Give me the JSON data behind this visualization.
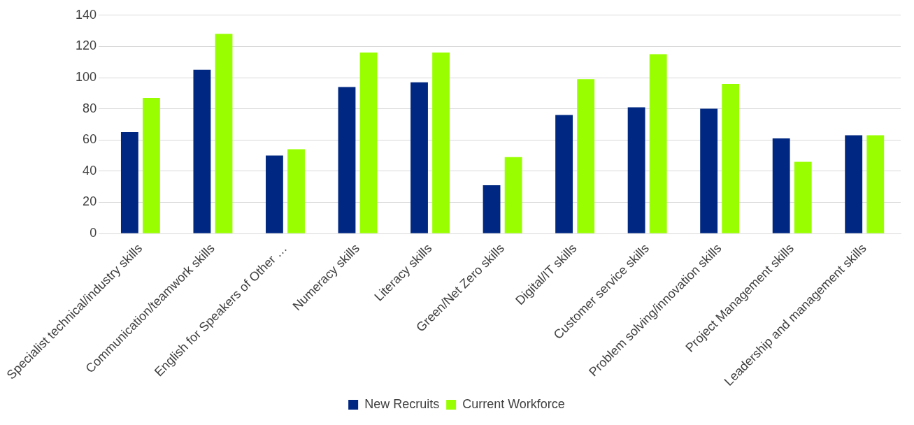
{
  "chart_data": {
    "type": "bar",
    "categories": [
      "Specialist technical/industry skills",
      "Communication/teamwork skills",
      "English for Speakers of Other …",
      "Numeracy skills",
      "Literacy skills",
      "Green/Net Zero skills",
      "Digital/IT skills",
      "Customer service skills",
      "Problem solving/innovation skills",
      "Project Management skills",
      "Leadership and management skills"
    ],
    "series": [
      {
        "name": "New Recruits",
        "color": "#002882",
        "values": [
          65,
          105,
          50,
          94,
          97,
          31,
          76,
          81,
          80,
          61,
          63
        ]
      },
      {
        "name": "Current Workforce",
        "color": "#99ff00",
        "values": [
          87,
          128,
          54,
          116,
          116,
          49,
          99,
          115,
          96,
          46,
          63
        ]
      }
    ],
    "ylim": [
      0,
      140
    ],
    "yticks": [
      0,
      20,
      40,
      60,
      80,
      100,
      120,
      140
    ],
    "grid": "y",
    "legend": "bottom"
  }
}
